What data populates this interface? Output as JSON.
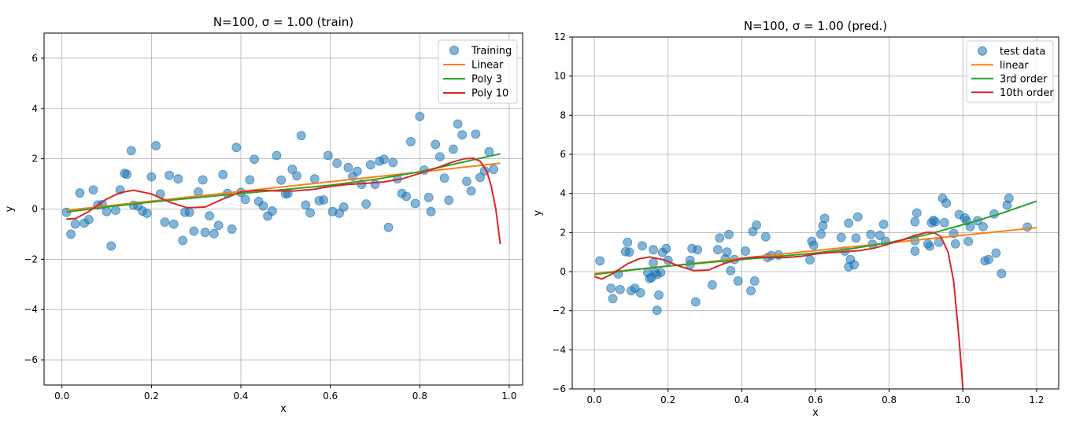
{
  "chart_data": [
    {
      "type": "line",
      "title": "N=100, σ = 1.00 (train)",
      "xlabel": "x",
      "ylabel": "y",
      "xlim": [
        -0.04,
        1.03
      ],
      "ylim": [
        -7,
        7
      ],
      "xticks": [
        0.0,
        0.2,
        0.4,
        0.6,
        0.8,
        1.0
      ],
      "xtick_labels": [
        "0.0",
        "0.2",
        "0.4",
        "0.6",
        "0.8",
        "1.0"
      ],
      "yticks": [
        -6,
        -4,
        -2,
        0,
        2,
        4,
        6
      ],
      "ytick_labels": [
        "−6",
        "−4",
        "−2",
        "0",
        "2",
        "4",
        "6"
      ],
      "grid": true,
      "legend_position": "top-right",
      "scatter": {
        "name": "Training",
        "color": "#1f77b4",
        "points": [
          [
            0.01,
            -0.13
          ],
          [
            0.02,
            -1.0
          ],
          [
            0.03,
            -0.6
          ],
          [
            0.04,
            0.64
          ],
          [
            0.05,
            -0.56
          ],
          [
            0.06,
            -0.42
          ],
          [
            0.07,
            0.76
          ],
          [
            0.08,
            0.16
          ],
          [
            0.09,
            0.18
          ],
          [
            0.1,
            -0.1
          ],
          [
            0.11,
            -1.47
          ],
          [
            0.12,
            -0.05
          ],
          [
            0.13,
            0.76
          ],
          [
            0.14,
            1.42
          ],
          [
            0.145,
            1.38
          ],
          [
            0.155,
            2.32
          ],
          [
            0.16,
            0.15
          ],
          [
            0.17,
            0.12
          ],
          [
            0.18,
            -0.08
          ],
          [
            0.19,
            -0.17
          ],
          [
            0.2,
            1.28
          ],
          [
            0.21,
            2.52
          ],
          [
            0.22,
            0.6
          ],
          [
            0.23,
            -0.52
          ],
          [
            0.24,
            1.34
          ],
          [
            0.25,
            -0.6
          ],
          [
            0.26,
            1.2
          ],
          [
            0.27,
            -1.25
          ],
          [
            0.275,
            -0.13
          ],
          [
            0.285,
            -0.13
          ],
          [
            0.295,
            -0.88
          ],
          [
            0.305,
            0.68
          ],
          [
            0.315,
            1.16
          ],
          [
            0.32,
            -0.93
          ],
          [
            0.33,
            -0.27
          ],
          [
            0.34,
            -0.98
          ],
          [
            0.35,
            -0.65
          ],
          [
            0.36,
            1.37
          ],
          [
            0.37,
            0.62
          ],
          [
            0.38,
            -0.8
          ],
          [
            0.39,
            2.45
          ],
          [
            0.4,
            0.66
          ],
          [
            0.41,
            0.38
          ],
          [
            0.42,
            1.16
          ],
          [
            0.43,
            1.98
          ],
          [
            0.44,
            0.3
          ],
          [
            0.45,
            0.12
          ],
          [
            0.46,
            -0.28
          ],
          [
            0.47,
            -0.08
          ],
          [
            0.48,
            2.13
          ],
          [
            0.49,
            1.15
          ],
          [
            0.5,
            0.6
          ],
          [
            0.505,
            0.62
          ],
          [
            0.515,
            1.58
          ],
          [
            0.525,
            1.32
          ],
          [
            0.535,
            2.92
          ],
          [
            0.545,
            0.16
          ],
          [
            0.555,
            -0.15
          ],
          [
            0.565,
            1.2
          ],
          [
            0.575,
            0.33
          ],
          [
            0.585,
            0.36
          ],
          [
            0.595,
            2.13
          ],
          [
            0.605,
            -0.1
          ],
          [
            0.615,
            1.82
          ],
          [
            0.62,
            -0.17
          ],
          [
            0.63,
            0.08
          ],
          [
            0.64,
            1.65
          ],
          [
            0.65,
            1.3
          ],
          [
            0.66,
            1.5
          ],
          [
            0.67,
            0.98
          ],
          [
            0.68,
            0.2
          ],
          [
            0.69,
            1.76
          ],
          [
            0.7,
            0.98
          ],
          [
            0.71,
            1.9
          ],
          [
            0.72,
            1.98
          ],
          [
            0.73,
            -0.73
          ],
          [
            0.74,
            1.85
          ],
          [
            0.75,
            1.2
          ],
          [
            0.76,
            0.62
          ],
          [
            0.77,
            0.5
          ],
          [
            0.78,
            2.68
          ],
          [
            0.79,
            0.22
          ],
          [
            0.8,
            3.68
          ],
          [
            0.81,
            1.55
          ],
          [
            0.82,
            0.46
          ],
          [
            0.825,
            -0.1
          ],
          [
            0.835,
            2.57
          ],
          [
            0.845,
            2.08
          ],
          [
            0.855,
            1.23
          ],
          [
            0.865,
            0.35
          ],
          [
            0.875,
            2.38
          ],
          [
            0.885,
            3.38
          ],
          [
            0.895,
            2.95
          ],
          [
            0.905,
            1.1
          ],
          [
            0.915,
            0.72
          ],
          [
            0.925,
            2.98
          ],
          [
            0.935,
            1.26
          ],
          [
            0.945,
            1.52
          ],
          [
            0.955,
            2.28
          ],
          [
            0.965,
            1.58
          ]
        ]
      },
      "series": [
        {
          "name": "Linear",
          "color": "#ff7f0e",
          "x": [
            0.01,
            0.98
          ],
          "y": [
            -0.05,
            1.82
          ]
        },
        {
          "name": "Poly 3",
          "color": "#2ca02c",
          "x": [
            0.01,
            0.1,
            0.2,
            0.3,
            0.4,
            0.5,
            0.6,
            0.7,
            0.8,
            0.9,
            0.98
          ],
          "y": [
            -0.12,
            0.08,
            0.28,
            0.45,
            0.62,
            0.78,
            0.95,
            1.18,
            1.48,
            1.88,
            2.2
          ]
        },
        {
          "name": "Poly 10",
          "color": "#d62728",
          "x": [
            0.01,
            0.03,
            0.06,
            0.1,
            0.13,
            0.16,
            0.2,
            0.24,
            0.28,
            0.32,
            0.36,
            0.4,
            0.44,
            0.48,
            0.52,
            0.56,
            0.6,
            0.64,
            0.68,
            0.72,
            0.76,
            0.8,
            0.84,
            0.87,
            0.9,
            0.92,
            0.935,
            0.95,
            0.96,
            0.97,
            0.98
          ],
          "y": [
            -0.4,
            -0.38,
            -0.1,
            0.4,
            0.65,
            0.75,
            0.6,
            0.28,
            0.05,
            0.08,
            0.4,
            0.68,
            0.75,
            0.72,
            0.72,
            0.78,
            0.9,
            0.98,
            1.02,
            1.08,
            1.2,
            1.42,
            1.65,
            1.85,
            2.0,
            2.02,
            1.9,
            1.5,
            0.9,
            0.0,
            -1.4
          ]
        }
      ]
    },
    {
      "type": "line",
      "title": "N=100, σ = 1.00 (pred.)",
      "xlabel": "x",
      "ylabel": "y",
      "xlim": [
        -0.06,
        1.26
      ],
      "ylim": [
        -6,
        12
      ],
      "xticks": [
        0.0,
        0.2,
        0.4,
        0.6,
        0.8,
        1.0,
        1.2
      ],
      "xtick_labels": [
        "0.0",
        "0.2",
        "0.4",
        "0.6",
        "0.8",
        "1.0",
        "1.2"
      ],
      "yticks": [
        -6,
        -4,
        -2,
        0,
        2,
        4,
        6,
        8,
        10,
        12
      ],
      "ytick_labels": [
        "−6",
        "−4",
        "−2",
        "0",
        "2",
        "4",
        "6",
        "8",
        "10",
        "12"
      ],
      "grid": true,
      "legend_position": "top-right",
      "scatter": {
        "name": "test data",
        "color": "#1f77b4",
        "points": [
          [
            0.015,
            0.55
          ],
          [
            0.045,
            -0.85
          ],
          [
            0.05,
            -1.38
          ],
          [
            0.065,
            -0.12
          ],
          [
            0.07,
            -0.92
          ],
          [
            0.085,
            1.02
          ],
          [
            0.09,
            1.5
          ],
          [
            0.095,
            1.0
          ],
          [
            0.1,
            -0.98
          ],
          [
            0.11,
            -0.85
          ],
          [
            0.125,
            -1.08
          ],
          [
            0.13,
            1.32
          ],
          [
            0.145,
            -0.05
          ],
          [
            0.15,
            -0.35
          ],
          [
            0.155,
            -0.3
          ],
          [
            0.16,
            1.12
          ],
          [
            0.16,
            0.45
          ],
          [
            0.165,
            -0.05
          ],
          [
            0.17,
            -0.15
          ],
          [
            0.17,
            -1.98
          ],
          [
            0.175,
            -1.2
          ],
          [
            0.18,
            -0.05
          ],
          [
            0.185,
            0.98
          ],
          [
            0.195,
            1.18
          ],
          [
            0.2,
            0.58
          ],
          [
            0.26,
            0.58
          ],
          [
            0.26,
            0.35
          ],
          [
            0.265,
            1.18
          ],
          [
            0.275,
            -1.55
          ],
          [
            0.28,
            1.12
          ],
          [
            0.32,
            -0.68
          ],
          [
            0.335,
            1.12
          ],
          [
            0.34,
            1.72
          ],
          [
            0.355,
            0.65
          ],
          [
            0.36,
            1.0
          ],
          [
            0.365,
            1.9
          ],
          [
            0.37,
            0.05
          ],
          [
            0.38,
            0.62
          ],
          [
            0.39,
            -0.48
          ],
          [
            0.41,
            1.05
          ],
          [
            0.425,
            -0.98
          ],
          [
            0.43,
            2.05
          ],
          [
            0.435,
            -0.48
          ],
          [
            0.44,
            2.38
          ],
          [
            0.465,
            1.78
          ],
          [
            0.47,
            0.72
          ],
          [
            0.48,
            0.82
          ],
          [
            0.5,
            0.85
          ],
          [
            0.585,
            0.6
          ],
          [
            0.59,
            1.55
          ],
          [
            0.595,
            1.35
          ],
          [
            0.615,
            1.92
          ],
          [
            0.62,
            2.35
          ],
          [
            0.625,
            2.72
          ],
          [
            0.67,
            1.75
          ],
          [
            0.68,
            1.05
          ],
          [
            0.69,
            2.48
          ],
          [
            0.69,
            0.25
          ],
          [
            0.695,
            0.62
          ],
          [
            0.705,
            0.35
          ],
          [
            0.71,
            1.72
          ],
          [
            0.715,
            2.8
          ],
          [
            0.75,
            1.9
          ],
          [
            0.755,
            1.4
          ],
          [
            0.775,
            1.85
          ],
          [
            0.785,
            2.42
          ],
          [
            0.79,
            1.55
          ],
          [
            0.87,
            2.55
          ],
          [
            0.875,
            3.0
          ],
          [
            0.87,
            1.58
          ],
          [
            0.87,
            1.05
          ],
          [
            0.905,
            1.42
          ],
          [
            0.91,
            1.3
          ],
          [
            0.915,
            2.5
          ],
          [
            0.92,
            2.62
          ],
          [
            0.925,
            2.55
          ],
          [
            0.935,
            1.5
          ],
          [
            0.945,
            3.75
          ],
          [
            0.955,
            3.5
          ],
          [
            0.95,
            2.5
          ],
          [
            0.975,
            1.95
          ],
          [
            0.98,
            1.42
          ],
          [
            0.99,
            2.92
          ],
          [
            1.005,
            2.75
          ],
          [
            1.01,
            2.6
          ],
          [
            1.015,
            1.55
          ],
          [
            1.02,
            2.3
          ],
          [
            1.04,
            2.6
          ],
          [
            1.055,
            2.3
          ],
          [
            1.06,
            0.55
          ],
          [
            1.07,
            0.62
          ],
          [
            1.085,
            2.95
          ],
          [
            1.09,
            0.95
          ],
          [
            1.105,
            -0.1
          ],
          [
            1.12,
            3.4
          ],
          [
            1.125,
            3.75
          ],
          [
            1.175,
            2.28
          ]
        ]
      },
      "series": [
        {
          "name": "linear",
          "color": "#ff7f0e",
          "x": [
            0.0,
            1.2
          ],
          "y": [
            -0.1,
            2.25
          ]
        },
        {
          "name": "3rd order",
          "color": "#2ca02c",
          "x": [
            0.0,
            0.1,
            0.2,
            0.3,
            0.4,
            0.5,
            0.6,
            0.7,
            0.8,
            0.9,
            1.0,
            1.1,
            1.2
          ],
          "y": [
            -0.15,
            0.08,
            0.28,
            0.45,
            0.62,
            0.78,
            0.95,
            1.18,
            1.48,
            1.88,
            2.4,
            2.95,
            3.6
          ]
        },
        {
          "name": "10th order",
          "color": "#d62728",
          "x": [
            0.0,
            0.02,
            0.05,
            0.09,
            0.12,
            0.15,
            0.19,
            0.23,
            0.27,
            0.31,
            0.35,
            0.4,
            0.44,
            0.48,
            0.52,
            0.56,
            0.6,
            0.64,
            0.68,
            0.72,
            0.76,
            0.8,
            0.84,
            0.87,
            0.9,
            0.92,
            0.94,
            0.96,
            0.975,
            0.99,
            1.0
          ],
          "y": [
            -0.25,
            -0.38,
            -0.1,
            0.4,
            0.65,
            0.75,
            0.6,
            0.28,
            0.05,
            0.08,
            0.4,
            0.68,
            0.75,
            0.72,
            0.72,
            0.78,
            0.9,
            0.98,
            1.02,
            1.08,
            1.2,
            1.42,
            1.65,
            1.85,
            2.0,
            2.0,
            1.8,
            1.0,
            -0.5,
            -3.5,
            -6.0
          ]
        }
      ]
    }
  ]
}
